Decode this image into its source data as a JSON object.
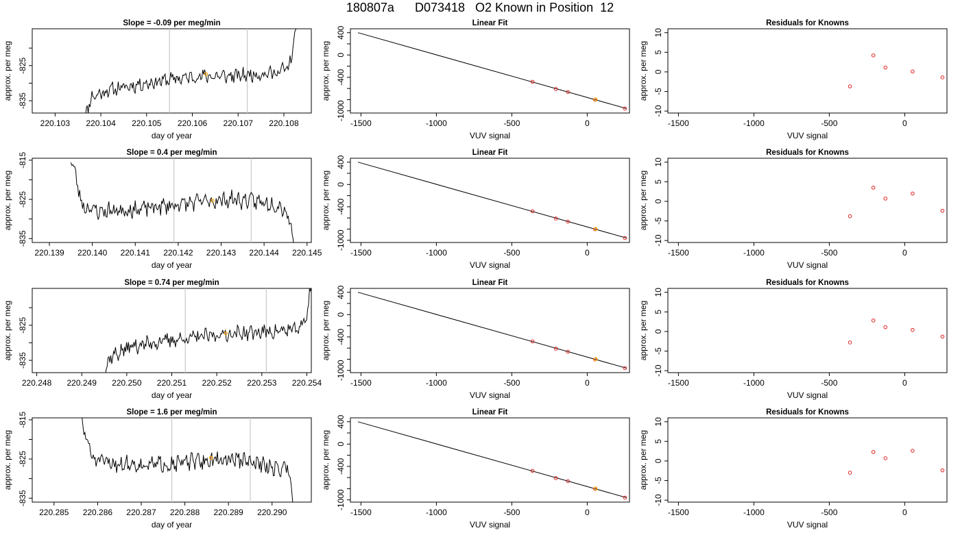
{
  "page": {
    "title": "180807a      D073418   O2 Known in Position  12"
  },
  "chart_data": [
    {
      "type": "line",
      "panel": "timeseries",
      "row": 0,
      "title": "Slope =  -0.09  per meg/min",
      "xlabel": "day of year",
      "ylabel": "approx. per meg",
      "xlim": [
        220.1025,
        220.1086
      ],
      "ylim": [
        -838.5,
        -814.5
      ],
      "xticks": [
        220.103,
        220.104,
        220.105,
        220.106,
        220.107,
        220.108
      ],
      "xtick_labels": [
        "220.103",
        "220.104",
        "220.105",
        "220.106",
        "220.107",
        "220.108"
      ],
      "yticks": [
        -835,
        -830,
        -825,
        -820
      ],
      "ytick_labels": [
        "-835",
        "",
        "-825",
        ""
      ],
      "vlines": [
        220.1055,
        220.1072
      ],
      "marker": {
        "x": 220.1063,
        "y": -827.4,
        "color": "#ffa500"
      },
      "series": [
        {
          "x_start": 220.1036,
          "x_end": 220.1083,
          "anchors": [
            [
              0.0,
              -842.0
            ],
            [
              0.04,
              -834.0
            ],
            [
              0.12,
              -832.0
            ],
            [
              0.25,
              -830.5
            ],
            [
              0.4,
              -829.0
            ],
            [
              0.55,
              -828.0
            ],
            [
              0.7,
              -828.0
            ],
            [
              0.8,
              -827.5
            ],
            [
              0.9,
              -827.0
            ],
            [
              0.96,
              -825.5
            ],
            [
              0.985,
              -818.0
            ],
            [
              1.0,
              -811.0
            ]
          ],
          "noise": 1.6,
          "seed": 11
        }
      ]
    },
    {
      "type": "line",
      "panel": "fit",
      "row": 0,
      "title": "Linear Fit",
      "xlabel": "VUV signal",
      "ylabel": "approx. per meg",
      "xlim": [
        -1570,
        280
      ],
      "ylim": [
        -1040,
        470
      ],
      "xticks": [
        -1500,
        -1000,
        -500,
        0
      ],
      "xtick_labels": [
        "-1500",
        "-1000",
        "-500",
        "0"
      ],
      "yticks": [
        -1000,
        -800,
        -600,
        -400,
        -200,
        0,
        200,
        400
      ],
      "ytick_labels": [
        "-1000",
        "",
        "",
        "-400",
        "",
        "0",
        "",
        "400"
      ],
      "line": {
        "x": [
          -1520,
          260
        ],
        "y": [
          400,
          -960
        ]
      },
      "points": [
        {
          "x": -363,
          "y": -480
        },
        {
          "x": -208,
          "y": -610
        },
        {
          "x": -128,
          "y": -665
        },
        {
          "x": 52,
          "y": -803
        },
        {
          "x": 250,
          "y": -960
        }
      ],
      "highlight_point": {
        "x": 55,
        "y": -798,
        "color": "#ffa500"
      },
      "point_color": "#e02020"
    },
    {
      "type": "scatter",
      "panel": "residuals",
      "row": 0,
      "title": "Residuals for Knowns",
      "xlabel": "VUV signal",
      "ylabel": "approx. per meg",
      "xlim": [
        -1570,
        280
      ],
      "ylim": [
        -10.5,
        11
      ],
      "xticks": [
        -1500,
        -1000,
        -500,
        0
      ],
      "xtick_labels": [
        "-1500",
        "-1000",
        "-500",
        "0"
      ],
      "yticks": [
        -10,
        -5,
        0,
        5,
        10
      ],
      "ytick_labels": [
        "-10",
        "-5",
        "0",
        "5",
        "10"
      ],
      "points": [
        {
          "x": -363,
          "y": -3.7
        },
        {
          "x": -208,
          "y": 4.2
        },
        {
          "x": -128,
          "y": 1.1
        },
        {
          "x": 52,
          "y": 0.1
        },
        {
          "x": 250,
          "y": -1.4
        }
      ],
      "point_color": "#e02020"
    },
    {
      "type": "line",
      "panel": "timeseries",
      "row": 1,
      "title": "Slope =  0.4  per meg/min",
      "xlabel": "day of year",
      "ylabel": "approx. per meg",
      "xlim": [
        220.1386,
        220.1451
      ],
      "ylim": [
        -836,
        -814.5
      ],
      "xticks": [
        220.139,
        220.14,
        220.141,
        220.142,
        220.143,
        220.144,
        220.145
      ],
      "xtick_labels": [
        "220.139",
        "220.140",
        "220.141",
        "220.142",
        "220.143",
        "220.144",
        "220.145"
      ],
      "yticks": [
        -835,
        -830,
        -825,
        -820,
        -815
      ],
      "ytick_labels": [
        "-835",
        "",
        "-825",
        "",
        "-815"
      ],
      "vlines": [
        220.1419,
        220.1437
      ],
      "marker": {
        "x": 220.1428,
        "y": -825.3,
        "color": "#ffa500"
      },
      "series": [
        {
          "x_start": 220.1395,
          "x_end": 220.1447,
          "anchors": [
            [
              0.0,
              -814.0
            ],
            [
              0.025,
              -820.0
            ],
            [
              0.05,
              -826.5
            ],
            [
              0.12,
              -828.0
            ],
            [
              0.3,
              -827.5
            ],
            [
              0.45,
              -826.5
            ],
            [
              0.6,
              -825.5
            ],
            [
              0.72,
              -825.0
            ],
            [
              0.82,
              -825.5
            ],
            [
              0.9,
              -826.0
            ],
            [
              0.95,
              -827.0
            ],
            [
              0.98,
              -830.0
            ],
            [
              1.0,
              -837.0
            ]
          ],
          "noise": 1.7,
          "seed": 23
        }
      ]
    },
    {
      "type": "line",
      "panel": "fit",
      "row": 1,
      "title": "Linear Fit",
      "xlabel": "VUV signal",
      "ylabel": "approx. per meg",
      "xlim": [
        -1570,
        280
      ],
      "ylim": [
        -1040,
        470
      ],
      "xticks": [
        -1500,
        -1000,
        -500,
        0
      ],
      "xtick_labels": [
        "-1500",
        "-1000",
        "-500",
        "0"
      ],
      "yticks": [
        -1000,
        -800,
        -600,
        -400,
        -200,
        0,
        200,
        400
      ],
      "ytick_labels": [
        "-1000",
        "",
        "",
        "-400",
        "",
        "0",
        "",
        "400"
      ],
      "line": {
        "x": [
          -1520,
          260
        ],
        "y": [
          400,
          -960
        ]
      },
      "points": [
        {
          "x": -363,
          "y": -480
        },
        {
          "x": -208,
          "y": -610
        },
        {
          "x": -128,
          "y": -665
        },
        {
          "x": 52,
          "y": -803
        },
        {
          "x": 250,
          "y": -960
        }
      ],
      "highlight_point": {
        "x": 55,
        "y": -798,
        "color": "#ffa500"
      },
      "point_color": "#e02020"
    },
    {
      "type": "scatter",
      "panel": "residuals",
      "row": 1,
      "title": "Residuals for Knowns",
      "xlabel": "VUV signal",
      "ylabel": "approx. per meg",
      "xlim": [
        -1570,
        280
      ],
      "ylim": [
        -10.5,
        11
      ],
      "xticks": [
        -1500,
        -1000,
        -500,
        0
      ],
      "xtick_labels": [
        "-1500",
        "-1000",
        "-500",
        "0"
      ],
      "yticks": [
        -10,
        -5,
        0,
        5,
        10
      ],
      "ytick_labels": [
        "-10",
        "-5",
        "0",
        "5",
        "10"
      ],
      "points": [
        {
          "x": -363,
          "y": -3.8
        },
        {
          "x": -208,
          "y": 3.5
        },
        {
          "x": -128,
          "y": 0.7
        },
        {
          "x": 52,
          "y": 2.0
        },
        {
          "x": 250,
          "y": -2.4
        }
      ],
      "point_color": "#e02020"
    },
    {
      "type": "line",
      "panel": "timeseries",
      "row": 2,
      "title": "Slope =  0.74  per meg/min",
      "xlabel": "day of year",
      "ylabel": "approx. per meg",
      "xlim": [
        220.2479,
        220.2541
      ],
      "ylim": [
        -838.5,
        -814.5
      ],
      "xticks": [
        220.248,
        220.249,
        220.25,
        220.251,
        220.252,
        220.253,
        220.254
      ],
      "xtick_labels": [
        "220.248",
        "220.249",
        "220.250",
        "220.251",
        "220.252",
        "220.253",
        "220.254"
      ],
      "yticks": [
        -835,
        -830,
        -825,
        -820
      ],
      "ytick_labels": [
        "-835",
        "",
        "-825",
        ""
      ],
      "vlines": [
        220.2513,
        220.2531
      ],
      "marker": {
        "x": 220.2522,
        "y": -827.3,
        "color": "#ffa500"
      },
      "series": [
        {
          "x_start": 220.2494,
          "x_end": 220.2541,
          "anchors": [
            [
              0.0,
              -842.0
            ],
            [
              0.05,
              -834.0
            ],
            [
              0.15,
              -831.0
            ],
            [
              0.3,
              -829.5
            ],
            [
              0.45,
              -828.5
            ],
            [
              0.6,
              -827.5
            ],
            [
              0.75,
              -827.0
            ],
            [
              0.88,
              -826.5
            ],
            [
              0.95,
              -826.0
            ],
            [
              0.98,
              -822.0
            ],
            [
              1.0,
              -812.0
            ]
          ],
          "noise": 1.7,
          "seed": 37
        }
      ]
    },
    {
      "type": "line",
      "panel": "fit",
      "row": 2,
      "title": "Linear Fit",
      "xlabel": "VUV signal",
      "ylabel": "approx. per meg",
      "xlim": [
        -1570,
        280
      ],
      "ylim": [
        -1040,
        470
      ],
      "xticks": [
        -1500,
        -1000,
        -500,
        0
      ],
      "xtick_labels": [
        "-1500",
        "-1000",
        "-500",
        "0"
      ],
      "yticks": [
        -1000,
        -800,
        -600,
        -400,
        -200,
        0,
        200,
        400
      ],
      "ytick_labels": [
        "-1000",
        "",
        "",
        "-400",
        "",
        "0",
        "",
        "400"
      ],
      "line": {
        "x": [
          -1520,
          260
        ],
        "y": [
          400,
          -960
        ]
      },
      "points": [
        {
          "x": -363,
          "y": -480
        },
        {
          "x": -208,
          "y": -610
        },
        {
          "x": -128,
          "y": -665
        },
        {
          "x": 52,
          "y": -803
        },
        {
          "x": 250,
          "y": -960
        }
      ],
      "highlight_point": {
        "x": 55,
        "y": -798,
        "color": "#ffa500"
      },
      "point_color": "#e02020"
    },
    {
      "type": "scatter",
      "panel": "residuals",
      "row": 2,
      "title": "Residuals for Knowns",
      "xlabel": "VUV signal",
      "ylabel": "approx. per meg",
      "xlim": [
        -1570,
        280
      ],
      "ylim": [
        -10.5,
        11
      ],
      "xticks": [
        -1500,
        -1000,
        -500,
        0
      ],
      "xtick_labels": [
        "-1500",
        "-1000",
        "-500",
        "0"
      ],
      "yticks": [
        -10,
        -5,
        0,
        5,
        10
      ],
      "ytick_labels": [
        "-10",
        "-5",
        "0",
        "5",
        "10"
      ],
      "points": [
        {
          "x": -363,
          "y": -2.8
        },
        {
          "x": -208,
          "y": 2.8
        },
        {
          "x": -128,
          "y": 1.1
        },
        {
          "x": 52,
          "y": 0.4
        },
        {
          "x": 250,
          "y": -1.3
        }
      ],
      "point_color": "#e02020"
    },
    {
      "type": "line",
      "panel": "timeseries",
      "row": 3,
      "title": "Slope =  1.6  per meg/min",
      "xlabel": "day of year",
      "ylabel": "approx. per meg",
      "xlim": [
        220.2845,
        220.2909
      ],
      "ylim": [
        -836,
        -814.5
      ],
      "xticks": [
        220.285,
        220.286,
        220.287,
        220.288,
        220.289,
        220.29
      ],
      "xtick_labels": [
        "220.285",
        "220.286",
        "220.287",
        "220.288",
        "220.289",
        "220.290"
      ],
      "yticks": [
        -835,
        -830,
        -825,
        -820,
        -815
      ],
      "ytick_labels": [
        "-835",
        "",
        "-825",
        "",
        "-815"
      ],
      "vlines": [
        220.2877,
        220.2895
      ],
      "marker": {
        "x": 220.2886,
        "y": -824.7,
        "color": "#ffa500"
      },
      "series": [
        {
          "x_start": 220.2856,
          "x_end": 220.2905,
          "anchors": [
            [
              0.0,
              -814.0
            ],
            [
              0.03,
              -820.0
            ],
            [
              0.06,
              -825.0
            ],
            [
              0.12,
              -826.0
            ],
            [
              0.3,
              -826.5
            ],
            [
              0.45,
              -826.0
            ],
            [
              0.6,
              -825.5
            ],
            [
              0.72,
              -825.0
            ],
            [
              0.85,
              -826.5
            ],
            [
              0.93,
              -827.5
            ],
            [
              0.97,
              -827.0
            ],
            [
              0.985,
              -830.0
            ],
            [
              1.0,
              -837.0
            ]
          ],
          "noise": 1.7,
          "seed": 51
        }
      ]
    },
    {
      "type": "line",
      "panel": "fit",
      "row": 3,
      "title": "Linear Fit",
      "xlabel": "VUV signal",
      "ylabel": "approx. per meg",
      "xlim": [
        -1570,
        280
      ],
      "ylim": [
        -1040,
        470
      ],
      "xticks": [
        -1500,
        -1000,
        -500,
        0
      ],
      "xtick_labels": [
        "-1500",
        "-1000",
        "-500",
        "0"
      ],
      "yticks": [
        -1000,
        -800,
        -600,
        -400,
        -200,
        0,
        200,
        400
      ],
      "ytick_labels": [
        "-1000",
        "",
        "",
        "-400",
        "",
        "0",
        "",
        "400"
      ],
      "line": {
        "x": [
          -1520,
          260
        ],
        "y": [
          400,
          -960
        ]
      },
      "points": [
        {
          "x": -363,
          "y": -480
        },
        {
          "x": -208,
          "y": -610
        },
        {
          "x": -128,
          "y": -665
        },
        {
          "x": 52,
          "y": -803
        },
        {
          "x": 250,
          "y": -960
        }
      ],
      "highlight_point": {
        "x": 55,
        "y": -798,
        "color": "#ffa500"
      },
      "point_color": "#e02020"
    },
    {
      "type": "scatter",
      "panel": "residuals",
      "row": 3,
      "title": "Residuals for Knowns",
      "xlabel": "VUV signal",
      "ylabel": "approx. per meg",
      "xlim": [
        -1570,
        280
      ],
      "ylim": [
        -10.5,
        11
      ],
      "xticks": [
        -1500,
        -1000,
        -500,
        0
      ],
      "xtick_labels": [
        "-1500",
        "-1000",
        "-500",
        "0"
      ],
      "yticks": [
        -10,
        -5,
        0,
        5,
        10
      ],
      "ytick_labels": [
        "-10",
        "-5",
        "0",
        "5",
        "10"
      ],
      "points": [
        {
          "x": -363,
          "y": -3.0
        },
        {
          "x": -208,
          "y": 2.3
        },
        {
          "x": -128,
          "y": 0.7
        },
        {
          "x": 52,
          "y": 2.6
        },
        {
          "x": 250,
          "y": -2.4
        }
      ],
      "point_color": "#e02020"
    }
  ]
}
